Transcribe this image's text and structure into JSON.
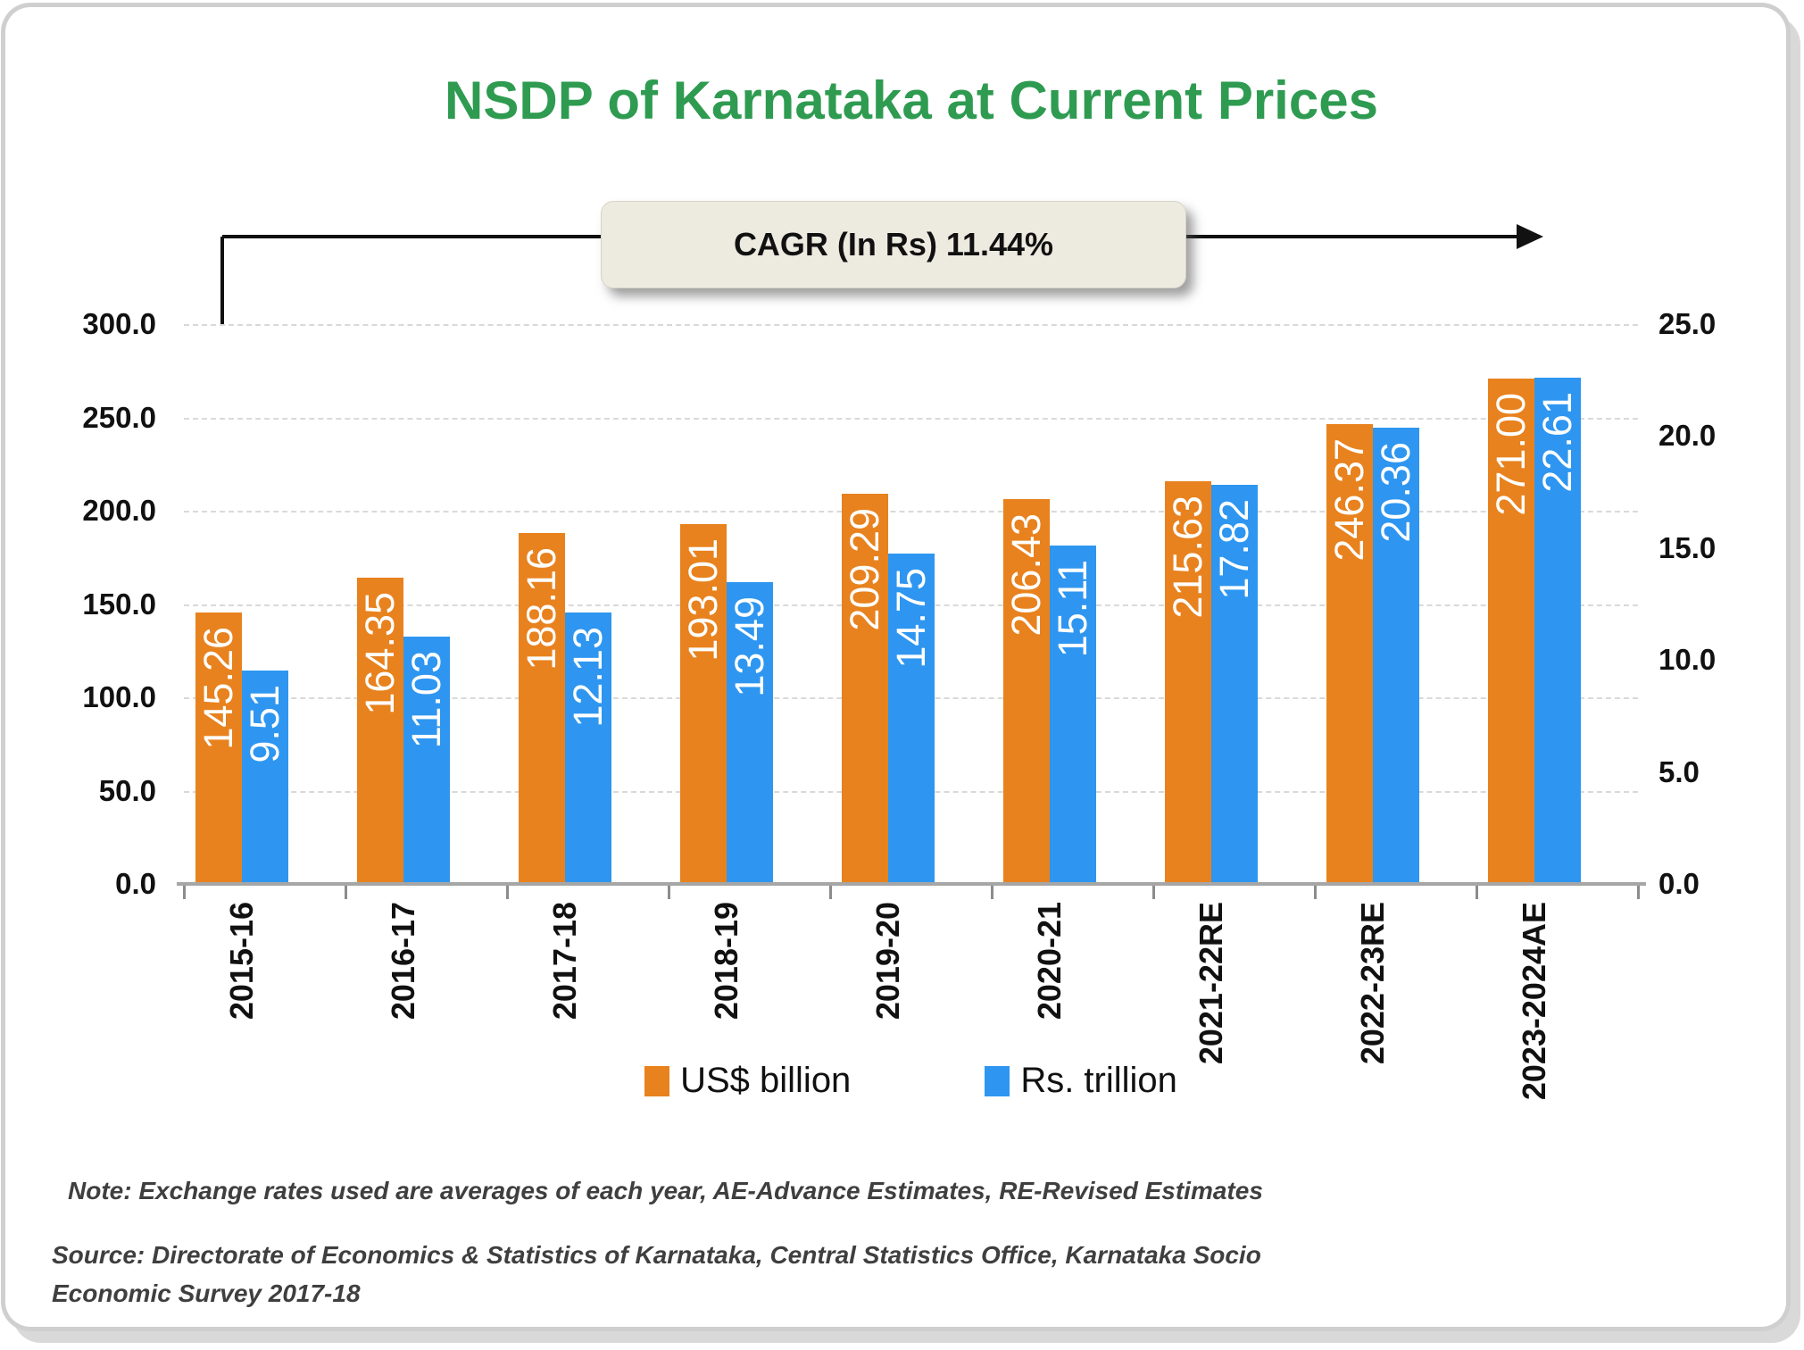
{
  "title": "NSDP of Karnataka at Current Prices",
  "cagr": {
    "label": "CAGR (In Rs) 11.44%"
  },
  "legend": [
    {
      "label": "US$ billion",
      "color": "#E8821E"
    },
    {
      "label": "Rs. trillion",
      "color": "#2E96F0"
    }
  ],
  "notes": {
    "note": "Note: Exchange rates used are averages of each year, AE-Advance Estimates, RE-Revised Estimates",
    "source": "Source: Directorate of Economics & Statistics of Karnataka, Central Statistics Office, Karnataka Socio Economic Survey 2017-18"
  },
  "colors": {
    "title_green": "#2E9B51",
    "orange": "#E8821E",
    "blue": "#2E96F0",
    "callout_fill": "#EDEAE0",
    "gridline": "#D9D9D9",
    "axis_line": "#A6A6A6",
    "note_text": "#3F3F3F"
  },
  "chart_data": {
    "type": "bar",
    "title": "NSDP of Karnataka at Current Prices",
    "annotation": "CAGR (In Rs) 11.44%",
    "categories": [
      "2015-16",
      "2016-17",
      "2017-18",
      "2018-19",
      "2019-20",
      "2020-21",
      "2021-22RE",
      "2022-23RE",
      "2023-2024AE"
    ],
    "series": [
      {
        "name": "US$ billion",
        "axis": "left",
        "color": "#E8821E",
        "values": [
          145.26,
          164.35,
          188.16,
          193.01,
          209.29,
          206.43,
          215.63,
          246.37,
          271.0
        ],
        "data_labels": [
          "145.26",
          "164.35",
          "188.16",
          "193.01",
          "209.29",
          "206.43",
          "215.63",
          "246.37",
          "271.00"
        ]
      },
      {
        "name": "Rs. trillion",
        "axis": "right",
        "color": "#2E96F0",
        "values": [
          9.51,
          11.03,
          12.13,
          13.49,
          14.75,
          15.11,
          17.82,
          20.36,
          22.61
        ],
        "data_labels": [
          "9.51",
          "11.03",
          "12.13",
          "13.49",
          "14.75",
          "15.11",
          "17.82",
          "20.36",
          "22.61"
        ]
      }
    ],
    "left_axis": {
      "min": 0,
      "max": 300,
      "step": 50,
      "tick_labels": [
        "300.0",
        "250.0",
        "200.0",
        "150.0",
        "100.0",
        "50.0",
        "0.0"
      ]
    },
    "right_axis": {
      "min": 0,
      "max": 25,
      "step": 5,
      "tick_labels": [
        "25.0",
        "20.0",
        "15.0",
        "10.0",
        "5.0",
        "0.0"
      ]
    },
    "grid": "horizontal dashed",
    "legend_position": "bottom",
    "data_label_rotation": -90,
    "category_label_rotation": -90
  }
}
